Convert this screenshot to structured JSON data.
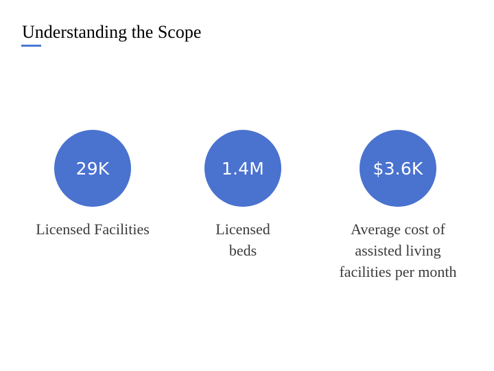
{
  "slide": {
    "title": "Understanding the Scope",
    "accent_color": "#4a72cf",
    "stats": [
      {
        "value": "29K",
        "label": "Licensed Facilities"
      },
      {
        "value": "1.4M",
        "label": "Licensed beds"
      },
      {
        "value": "$3.6K",
        "label": "Average cost of assisted living facilities per month"
      }
    ]
  }
}
